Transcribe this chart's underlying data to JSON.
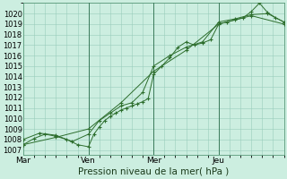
{
  "xlabel": "Pression niveau de la mer( hPa )",
  "bg_color": "#cceee0",
  "grid_color": "#99ccbb",
  "line_color": "#2d6e2d",
  "xlim": [
    0,
    96
  ],
  "ylim": [
    1006.5,
    1021.0
  ],
  "yticks": [
    1007,
    1008,
    1009,
    1010,
    1011,
    1012,
    1013,
    1014,
    1015,
    1016,
    1017,
    1018,
    1019,
    1020
  ],
  "xtick_positions": [
    0,
    24,
    48,
    72
  ],
  "xtick_labels": [
    "Mar",
    "Ven",
    "Mer",
    "Jeu"
  ],
  "vlines": [
    24,
    48,
    72
  ],
  "series1_x": [
    0,
    4,
    8,
    12,
    16,
    20,
    24,
    26,
    28,
    30,
    32,
    34,
    36,
    38,
    40,
    42,
    44,
    46,
    48,
    51,
    54,
    57,
    60,
    63,
    66,
    69,
    72,
    75,
    78,
    81,
    84,
    87,
    90,
    93,
    96
  ],
  "series1_y": [
    1007.5,
    1008.1,
    1008.5,
    1008.3,
    1008.0,
    1007.5,
    1007.3,
    1008.5,
    1009.2,
    1009.8,
    1010.2,
    1010.5,
    1010.8,
    1011.0,
    1011.2,
    1011.4,
    1011.6,
    1011.9,
    1014.2,
    1015.0,
    1015.8,
    1016.8,
    1017.3,
    1017.0,
    1017.2,
    1017.5,
    1019.0,
    1019.2,
    1019.4,
    1019.6,
    1020.2,
    1021.0,
    1020.1,
    1019.6,
    1019.2
  ],
  "series2_x": [
    0,
    6,
    12,
    18,
    24,
    28,
    32,
    36,
    40,
    44,
    48,
    54,
    60,
    66,
    72,
    78,
    84,
    90,
    96
  ],
  "series2_y": [
    1008.0,
    1008.6,
    1008.4,
    1007.8,
    1008.5,
    1009.8,
    1010.5,
    1011.2,
    1011.5,
    1012.5,
    1015.0,
    1016.0,
    1016.8,
    1017.3,
    1019.2,
    1019.5,
    1019.9,
    1020.0,
    1019.2
  ],
  "series3_x": [
    0,
    12,
    24,
    36,
    48,
    60,
    72,
    84,
    96
  ],
  "series3_y": [
    1007.5,
    1008.2,
    1009.0,
    1011.5,
    1014.5,
    1016.5,
    1019.0,
    1019.8,
    1019.0
  ]
}
